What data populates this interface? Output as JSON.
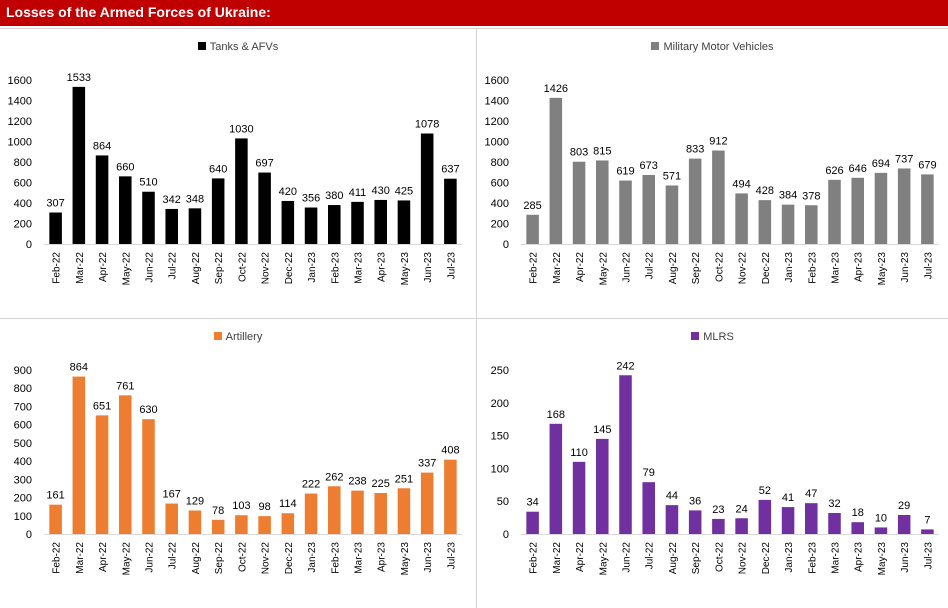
{
  "header": {
    "title": "Losses of the Armed Forces of Ukraine:",
    "background": "#c00000"
  },
  "chart_data": [
    {
      "type": "bar",
      "legend": "Tanks & AFVs",
      "color": "#000000",
      "categories": [
        "Feb-22",
        "Mar-22",
        "Apr-22",
        "May-22",
        "Jun-22",
        "Jul-22",
        "Aug-22",
        "Sep-22",
        "Oct-22",
        "Nov-22",
        "Dec-22",
        "Jan-23",
        "Feb-23",
        "Mar-23",
        "Apr-23",
        "May-23",
        "Jun-23",
        "Jul-23"
      ],
      "values": [
        307,
        1533,
        864,
        660,
        510,
        342,
        348,
        640,
        1030,
        697,
        420,
        356,
        380,
        411,
        430,
        425,
        1078,
        637
      ],
      "ylim": [
        0,
        1600
      ],
      "yticks": [
        0,
        200,
        400,
        600,
        800,
        1000,
        1200,
        1400,
        1600
      ],
      "grid": false,
      "legend_position": "top"
    },
    {
      "type": "bar",
      "legend": "Military Motor Vehicles",
      "color": "#808080",
      "categories": [
        "Feb-22",
        "Mar-22",
        "Apr-22",
        "May-22",
        "Jun-22",
        "Jul-22",
        "Aug-22",
        "Sep-22",
        "Oct-22",
        "Nov-22",
        "Dec-22",
        "Jan-23",
        "Feb-23",
        "Mar-23",
        "Apr-23",
        "May-23",
        "Jun-23",
        "Jul-23"
      ],
      "values": [
        285,
        1426,
        803,
        815,
        619,
        673,
        571,
        833,
        912,
        494,
        428,
        384,
        378,
        626,
        646,
        694,
        737,
        679
      ],
      "ylim": [
        0,
        1600
      ],
      "yticks": [
        0,
        200,
        400,
        600,
        800,
        1000,
        1200,
        1400,
        1600
      ],
      "grid": false,
      "legend_position": "top"
    },
    {
      "type": "bar",
      "legend": "Artillery",
      "color": "#ed7d31",
      "categories": [
        "Feb-22",
        "Mar-22",
        "Apr-22",
        "May-22",
        "Jun-22",
        "Jul-22",
        "Aug-22",
        "Sep-22",
        "Oct-22",
        "Nov-22",
        "Dec-22",
        "Jan-23",
        "Feb-23",
        "Mar-23",
        "Apr-23",
        "May-23",
        "Jun-23",
        "Jul-23"
      ],
      "values": [
        161,
        864,
        651,
        761,
        630,
        167,
        129,
        78,
        103,
        98,
        114,
        222,
        262,
        238,
        225,
        251,
        337,
        408
      ],
      "ylim": [
        0,
        900
      ],
      "yticks": [
        0,
        100,
        200,
        300,
        400,
        500,
        600,
        700,
        800,
        900
      ],
      "grid": false,
      "legend_position": "top"
    },
    {
      "type": "bar",
      "legend": "MLRS",
      "color": "#7030a0",
      "categories": [
        "Feb-22",
        "Mar-22",
        "Apr-22",
        "May-22",
        "Jun-22",
        "Jul-22",
        "Aug-22",
        "Sep-22",
        "Oct-22",
        "Nov-22",
        "Dec-22",
        "Jan-23",
        "Feb-23",
        "Mar-23",
        "Apr-23",
        "May-23",
        "Jun-23",
        "Jul-23"
      ],
      "values": [
        34,
        168,
        110,
        145,
        242,
        79,
        44,
        36,
        23,
        24,
        52,
        41,
        47,
        32,
        18,
        10,
        29,
        7
      ],
      "ylim": [
        0,
        250
      ],
      "yticks": [
        0,
        50,
        100,
        150,
        200,
        250
      ],
      "grid": false,
      "legend_position": "top"
    }
  ]
}
